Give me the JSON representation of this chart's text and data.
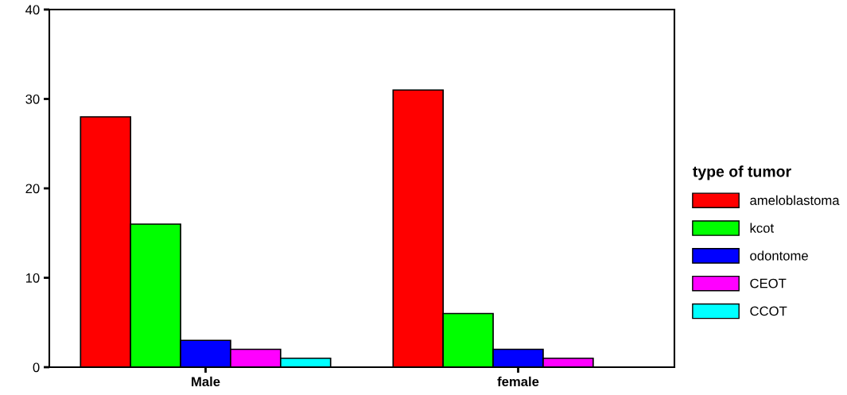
{
  "chart_data": {
    "type": "bar",
    "legend_title": "type of tumor",
    "categories": [
      "Male",
      "female"
    ],
    "series": [
      {
        "name": "ameloblastoma",
        "color": "#ff0000",
        "values": [
          28,
          31
        ]
      },
      {
        "name": "kcot",
        "color": "#00ff00",
        "values": [
          16,
          6
        ]
      },
      {
        "name": "odontome",
        "color": "#0000ff",
        "values": [
          3,
          2
        ]
      },
      {
        "name": "CEOT",
        "color": "#ff00ff",
        "values": [
          2,
          1
        ]
      },
      {
        "name": "CCOT",
        "color": "#00ffff",
        "values": [
          1,
          null
        ]
      }
    ],
    "ylim": [
      0,
      40
    ],
    "yticks": [
      0,
      10,
      20,
      30,
      40
    ],
    "grid": false,
    "legend": "right"
  }
}
